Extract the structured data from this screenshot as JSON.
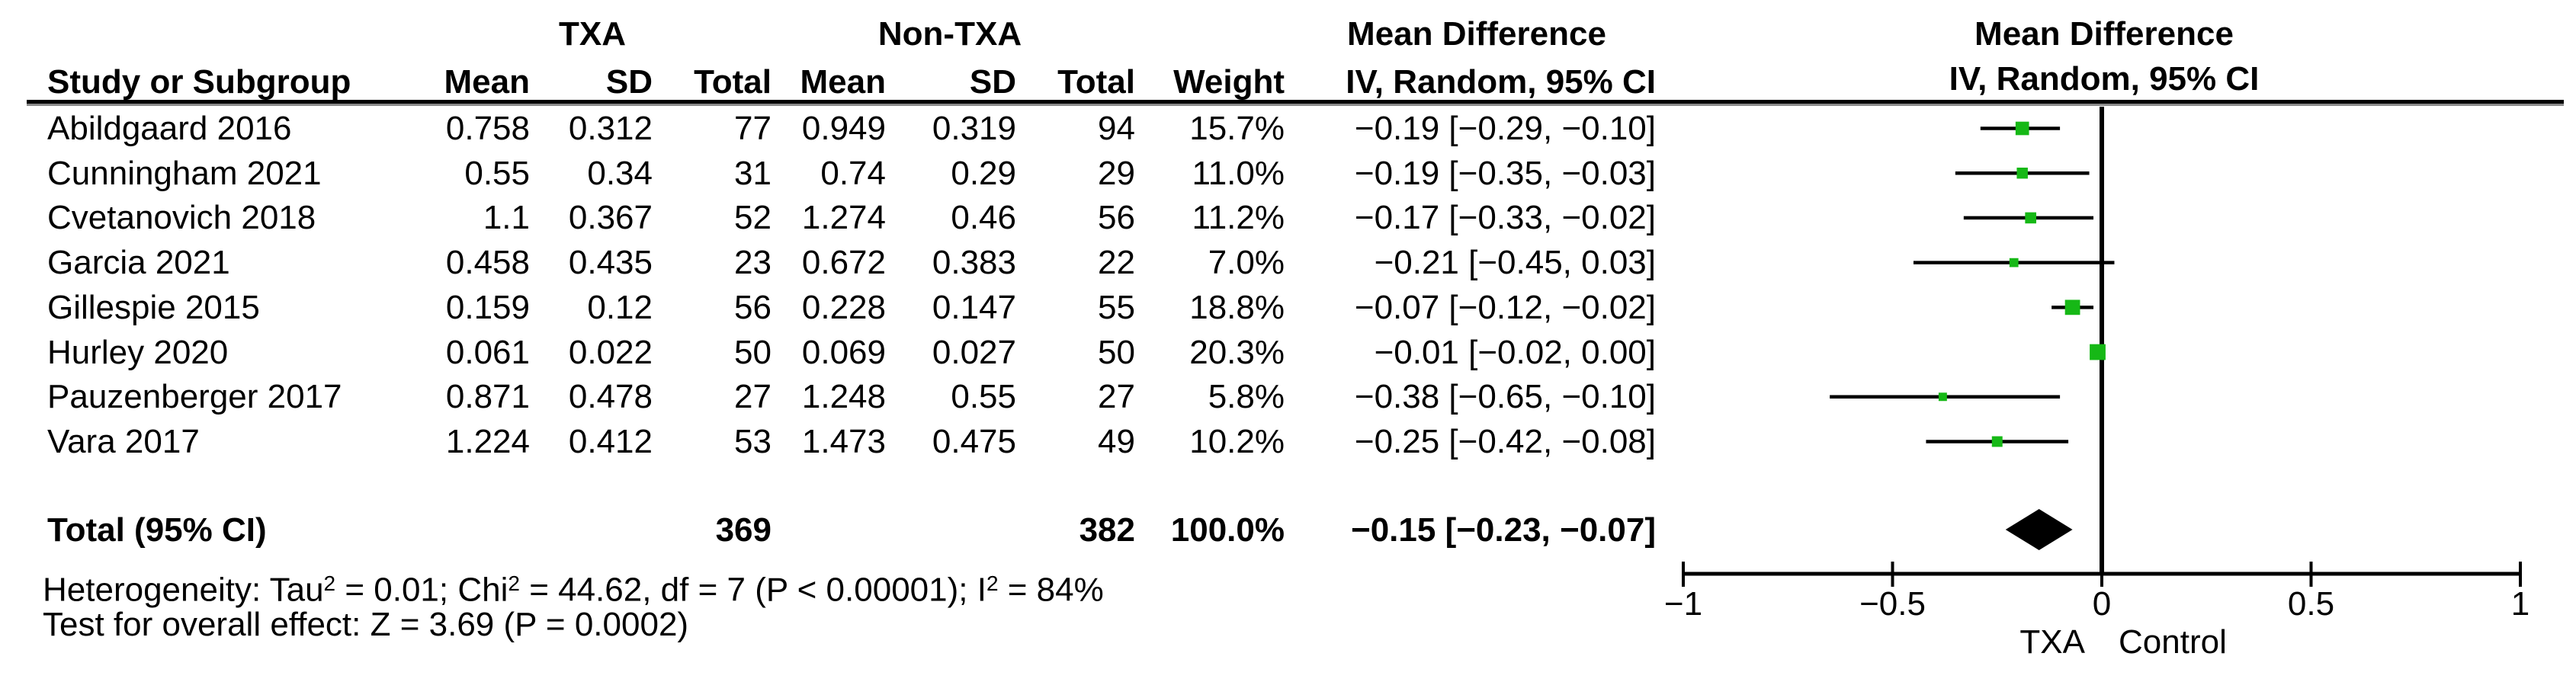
{
  "table": {
    "group_headers": {
      "txa": "TXA",
      "non_txa": "Non-TXA",
      "md_text": "Mean Difference",
      "md_plot": "Mean Difference"
    },
    "col_headers": {
      "study": "Study or Subgroup",
      "mean1": "Mean",
      "sd1": "SD",
      "total1": "Total",
      "mean2": "Mean",
      "sd2": "SD",
      "total2": "Total",
      "weight": "Weight",
      "ci": "IV, Random, 95% CI",
      "ci_plot": "IV, Random, 95% CI"
    },
    "rows": [
      {
        "name": "Abildgaard 2016",
        "mean1": "0.758",
        "sd1": "0.312",
        "total1": "77",
        "mean2": "0.949",
        "sd2": "0.319",
        "total2": "94",
        "weight": "15.7%",
        "ci": "−0.19 [−0.29, −0.10]"
      },
      {
        "name": "Cunningham 2021",
        "mean1": "0.55",
        "sd1": "0.34",
        "total1": "31",
        "mean2": "0.74",
        "sd2": "0.29",
        "total2": "29",
        "weight": "11.0%",
        "ci": "−0.19 [−0.35, −0.03]"
      },
      {
        "name": "Cvetanovich 2018",
        "mean1": "1.1",
        "sd1": "0.367",
        "total1": "52",
        "mean2": "1.274",
        "sd2": "0.46",
        "total2": "56",
        "weight": "11.2%",
        "ci": "−0.17 [−0.33, −0.02]"
      },
      {
        "name": "Garcia 2021",
        "mean1": "0.458",
        "sd1": "0.435",
        "total1": "23",
        "mean2": "0.672",
        "sd2": "0.383",
        "total2": "22",
        "weight": "7.0%",
        "ci": "−0.21 [−0.45, 0.03]"
      },
      {
        "name": "Gillespie 2015",
        "mean1": "0.159",
        "sd1": "0.12",
        "total1": "56",
        "mean2": "0.228",
        "sd2": "0.147",
        "total2": "55",
        "weight": "18.8%",
        "ci": "−0.07 [−0.12, −0.02]"
      },
      {
        "name": "Hurley 2020",
        "mean1": "0.061",
        "sd1": "0.022",
        "total1": "50",
        "mean2": "0.069",
        "sd2": "0.027",
        "total2": "50",
        "weight": "20.3%",
        "ci": "−0.01 [−0.02, 0.00]"
      },
      {
        "name": "Pauzenberger 2017",
        "mean1": "0.871",
        "sd1": "0.478",
        "total1": "27",
        "mean2": "1.248",
        "sd2": "0.55",
        "total2": "27",
        "weight": "5.8%",
        "ci": "−0.38 [−0.65, −0.10]"
      },
      {
        "name": "Vara 2017",
        "mean1": "1.224",
        "sd1": "0.412",
        "total1": "53",
        "mean2": "1.473",
        "sd2": "0.475",
        "total2": "49",
        "weight": "10.2%",
        "ci": "−0.25 [−0.42, −0.08]"
      }
    ],
    "total_row": {
      "label": "Total (95% CI)",
      "total1": "369",
      "total2": "382",
      "weight": "100.0%",
      "ci": "−0.15 [−0.23, −0.07]"
    },
    "het_parts": [
      "Heterogeneity: Tau",
      "2",
      " = 0.01; Chi",
      "2",
      " = 44.62, df = 7 (P < 0.00001); I",
      "2",
      " = 84%"
    ],
    "overall_effect": "Test for overall effect: Z = 3.69 (P = 0.0002)"
  },
  "chart_data": {
    "type": "forest",
    "effect_measure": "Mean Difference, IV, Random, 95% CI",
    "axis": {
      "xlim": [
        -1,
        1
      ],
      "ticks": [
        -1,
        -0.5,
        0,
        0.5,
        1
      ],
      "tick_labels": [
        "−1",
        "−0.5",
        "0",
        "0.5",
        "1"
      ],
      "left_label": "TXA",
      "right_label": "Control"
    },
    "marker_color": "#16b816",
    "line_color": "#000000",
    "studies": [
      {
        "name": "Abildgaard 2016",
        "md": -0.19,
        "lo": -0.29,
        "hi": -0.1,
        "weight": 15.7
      },
      {
        "name": "Cunningham 2021",
        "md": -0.19,
        "lo": -0.35,
        "hi": -0.03,
        "weight": 11.0
      },
      {
        "name": "Cvetanovich 2018",
        "md": -0.17,
        "lo": -0.33,
        "hi": -0.02,
        "weight": 11.2
      },
      {
        "name": "Garcia 2021",
        "md": -0.21,
        "lo": -0.45,
        "hi": 0.03,
        "weight": 7.0
      },
      {
        "name": "Gillespie 2015",
        "md": -0.07,
        "lo": -0.12,
        "hi": -0.02,
        "weight": 18.8
      },
      {
        "name": "Hurley 2020",
        "md": -0.01,
        "lo": -0.02,
        "hi": 0.0,
        "weight": 20.3
      },
      {
        "name": "Pauzenberger 2017",
        "md": -0.38,
        "lo": -0.65,
        "hi": -0.1,
        "weight": 5.8
      },
      {
        "name": "Vara 2017",
        "md": -0.25,
        "lo": -0.42,
        "hi": -0.08,
        "weight": 10.2
      }
    ],
    "total": {
      "md": -0.15,
      "lo": -0.23,
      "hi": -0.07,
      "weight": 100.0
    }
  }
}
